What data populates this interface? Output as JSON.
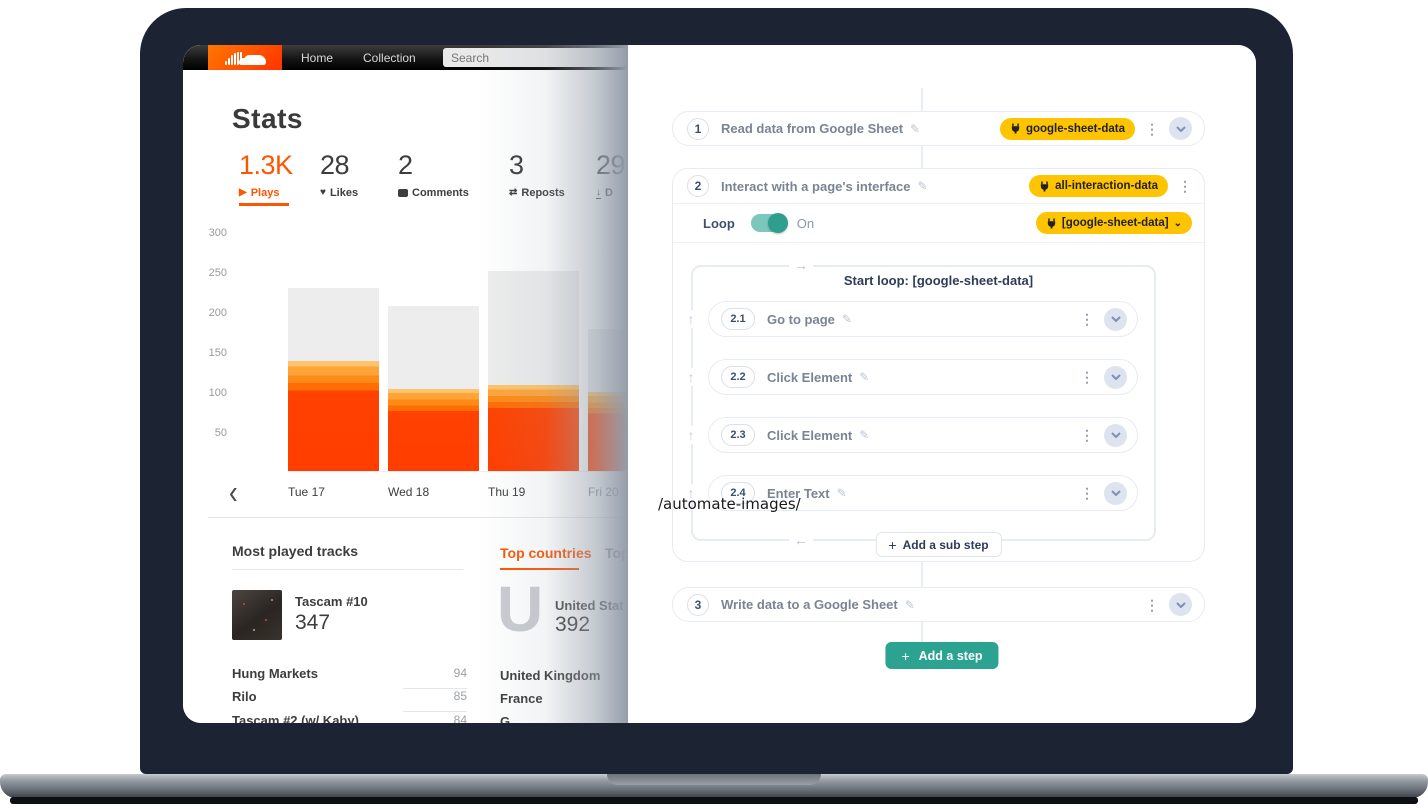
{
  "soundcloud": {
    "nav": {
      "items": [
        "Home",
        "Collection"
      ],
      "search_placeholder": "Search"
    },
    "page_title": "Stats",
    "metrics": [
      {
        "value": "1.3K",
        "label": "Plays",
        "icon": "play-icon",
        "active": true
      },
      {
        "value": "28",
        "label": "Likes",
        "icon": "heart-icon"
      },
      {
        "value": "2",
        "label": "Comments",
        "icon": "comment-icon"
      },
      {
        "value": "3",
        "label": "Reposts",
        "icon": "repost-icon"
      },
      {
        "value": "29",
        "label": "D",
        "icon": "download-icon",
        "truncated": true
      }
    ],
    "chart_data": {
      "type": "bar",
      "stacked": true,
      "categories": [
        "Tue 17",
        "Wed 18",
        "Thu 19",
        "Fri 20"
      ],
      "series": [
        {
          "name": "highlighted-plays",
          "values": [
            137,
            102,
            108,
            99
          ]
        },
        {
          "name": "total-plays",
          "values": [
            229,
            206,
            250,
            177
          ]
        }
      ],
      "yticks": [
        50,
        100,
        150,
        200,
        250,
        300
      ],
      "ylim": [
        0,
        300
      ],
      "title": "",
      "xlabel": "",
      "ylabel": "",
      "legend": "none",
      "grid": "off",
      "colors": {
        "total": "#ededed",
        "highlight": "#ff4200"
      }
    },
    "pager_prev": "‹",
    "most_played": {
      "title": "Most played tracks",
      "feature": {
        "name": "Tascam #10",
        "plays": "347"
      },
      "rows": [
        {
          "name": "Hung Markets",
          "value": "94"
        },
        {
          "name": "Rilo",
          "value": "85"
        },
        {
          "name": "Tascam #2 (w/ Kaby)",
          "value": "84"
        }
      ]
    },
    "countries": {
      "tabs": [
        {
          "label": "Top countries"
        },
        {
          "label": "Top"
        }
      ],
      "feature": {
        "letter": "U",
        "name": "United Stat",
        "value": "392"
      },
      "rows": [
        "United Kingdom",
        "France",
        "G"
      ]
    }
  },
  "workflow": {
    "steps": [
      {
        "num": "1",
        "title": "Read data from Google Sheet",
        "badge": "google-sheet-data"
      },
      {
        "num": "2",
        "title": "Interact with a page's interface",
        "badge": "all-interaction-data"
      },
      {
        "num": "3",
        "title": "Write data to a Google Sheet"
      }
    ],
    "loop": {
      "label": "Loop",
      "state": "On",
      "badge": "[google-sheet-data]",
      "badge_dropdown": "⌄",
      "start_label": "Start loop: [google-sheet-data]"
    },
    "substeps": [
      {
        "num": "2.1",
        "title": "Go to page"
      },
      {
        "num": "2.2",
        "title": "Click Element"
      },
      {
        "num": "2.3",
        "title": "Click Element"
      },
      {
        "num": "2.4",
        "title": "Enter Text"
      }
    ],
    "add_substep_label": "Add a sub step",
    "add_step_label": "Add a step",
    "plus_sign": "+",
    "kebab_glyph": "⋮",
    "pencil_glyph": "✎",
    "up_arrow_glyph": "↑",
    "loop_top_arrow": "→",
    "loop_bottom_arrow": "←",
    "accent_teal": "#2ba390",
    "badge_yellow": "#ffc400"
  },
  "overlay_text": "/automate-images/"
}
